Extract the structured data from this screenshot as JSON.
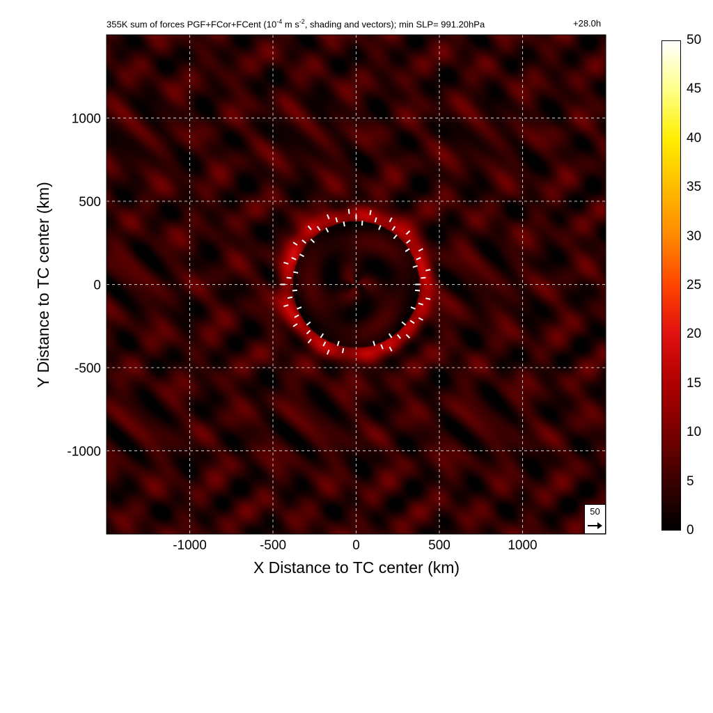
{
  "title_main": "355K sum of forces PGF+FCor+FCent (10",
  "title_exp1": "-4",
  "title_mid": " m s",
  "title_exp2": "-2",
  "title_end": ", shading and vectors); min SLP= 991.20hPa",
  "forecast_hour": "+28.0h",
  "reference_vector": {
    "value": "50"
  },
  "chart_data": {
    "type": "heatmap",
    "xlabel": "X Distance to TC center (km)",
    "ylabel": "Y Distance to TC center (km)",
    "xlim": [
      -1500,
      1500
    ],
    "ylim": [
      -1500,
      1500
    ],
    "xticks": [
      -1000,
      -500,
      0,
      500,
      1000
    ],
    "xtick_labels": [
      "-1000",
      "-500",
      "0",
      "500",
      "1000"
    ],
    "yticks": [
      1000,
      500,
      0,
      -500,
      -1000
    ],
    "ytick_labels": [
      "1000",
      "500",
      "0",
      "-500",
      "-1000"
    ],
    "grid": true,
    "colorbar": {
      "min": 0,
      "max": 50,
      "ticks": [
        0,
        5,
        10,
        15,
        20,
        25,
        30,
        35,
        40,
        45,
        50
      ],
      "tick_labels": [
        "0",
        "5",
        "10",
        "15",
        "20",
        "25",
        "30",
        "35",
        "40",
        "45",
        "50"
      ],
      "colormap": [
        "#000000",
        "#3a0000",
        "#7a0000",
        "#b00000",
        "#e01010",
        "#ff4400",
        "#ff8800",
        "#ffbb00",
        "#ffee00",
        "#ffff88",
        "#ffffff"
      ]
    },
    "field_features": {
      "background_level": 4,
      "ring_radius_km": 420,
      "ring_level": 11,
      "inner_level": 3
    }
  }
}
